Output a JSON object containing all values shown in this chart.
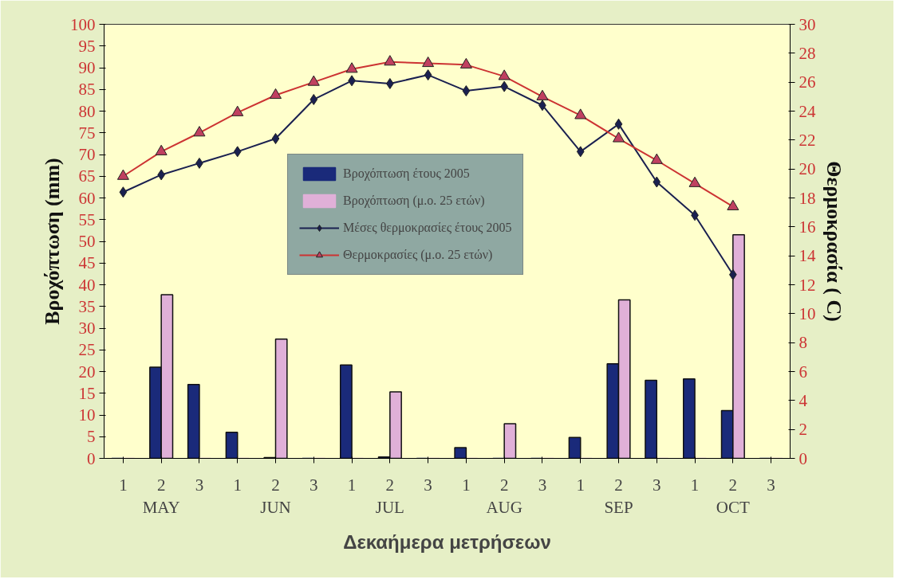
{
  "chart_data": {
    "type": "bar",
    "xlabel": "Δεκαήμερα μετρήσεων",
    "ylabel": "Βροχόπτωση (mm)",
    "y2label": "Θερμοκρασία ( C)",
    "categories": [
      "1",
      "2",
      "3",
      "1",
      "2",
      "3",
      "1",
      "2",
      "3",
      "1",
      "2",
      "3",
      "1",
      "2",
      "3",
      "1",
      "2",
      "3"
    ],
    "annotations": [
      "MAY",
      "JUN",
      "JUL",
      "AUG",
      "SEP",
      "OCT"
    ],
    "series": [
      {
        "name": "Βροχόπτωση έτους 2005",
        "color": "#1a2a7a",
        "values": [
          0,
          21,
          17,
          6,
          0.2,
          0,
          21.5,
          0.3,
          0,
          2.5,
          0,
          0,
          4.8,
          21.8,
          18,
          18.3,
          11,
          0
        ]
      },
      {
        "name": "Βροχόπτωση (μ.ο. 25 ετών)",
        "color": "#e0b0d8",
        "values": [
          0,
          37.7,
          0,
          0,
          27.5,
          0,
          0,
          15.3,
          0,
          0,
          8,
          0,
          0,
          36.5,
          0,
          0,
          51.5,
          0
        ]
      },
      {
        "name": "Μέσες θερμοκρασίες έτους 2005",
        "type": "line",
        "axis": "y2",
        "marker": "diamond",
        "color": "#1a2050",
        "values": [
          18.4,
          19.6,
          20.4,
          21.2,
          22.1,
          24.8,
          26.1,
          25.9,
          26.5,
          25.4,
          25.7,
          24.4,
          21.2,
          23.1,
          19.1,
          16.8,
          12.7,
          null
        ]
      },
      {
        "name": "Θερμοκρασίες (μ.ο. 25 ετών)",
        "type": "line",
        "axis": "y2",
        "marker": "triangle",
        "color": "#cc3333",
        "values": [
          19.5,
          21.2,
          22.5,
          23.9,
          25.1,
          26.0,
          26.9,
          27.4,
          27.3,
          27.2,
          26.4,
          25.0,
          23.7,
          22.1,
          20.6,
          19.0,
          17.4,
          null
        ]
      }
    ],
    "ylim": [
      0,
      100
    ],
    "yticks": [
      0,
      5,
      10,
      15,
      20,
      25,
      30,
      35,
      40,
      45,
      50,
      55,
      60,
      65,
      70,
      75,
      80,
      85,
      90,
      95,
      100
    ],
    "y2lim": [
      0,
      30
    ],
    "y2ticks": [
      0,
      2,
      4,
      6,
      8,
      10,
      12,
      14,
      16,
      18,
      20,
      22,
      24,
      26,
      28,
      30
    ],
    "grid": false,
    "legend": "center"
  }
}
